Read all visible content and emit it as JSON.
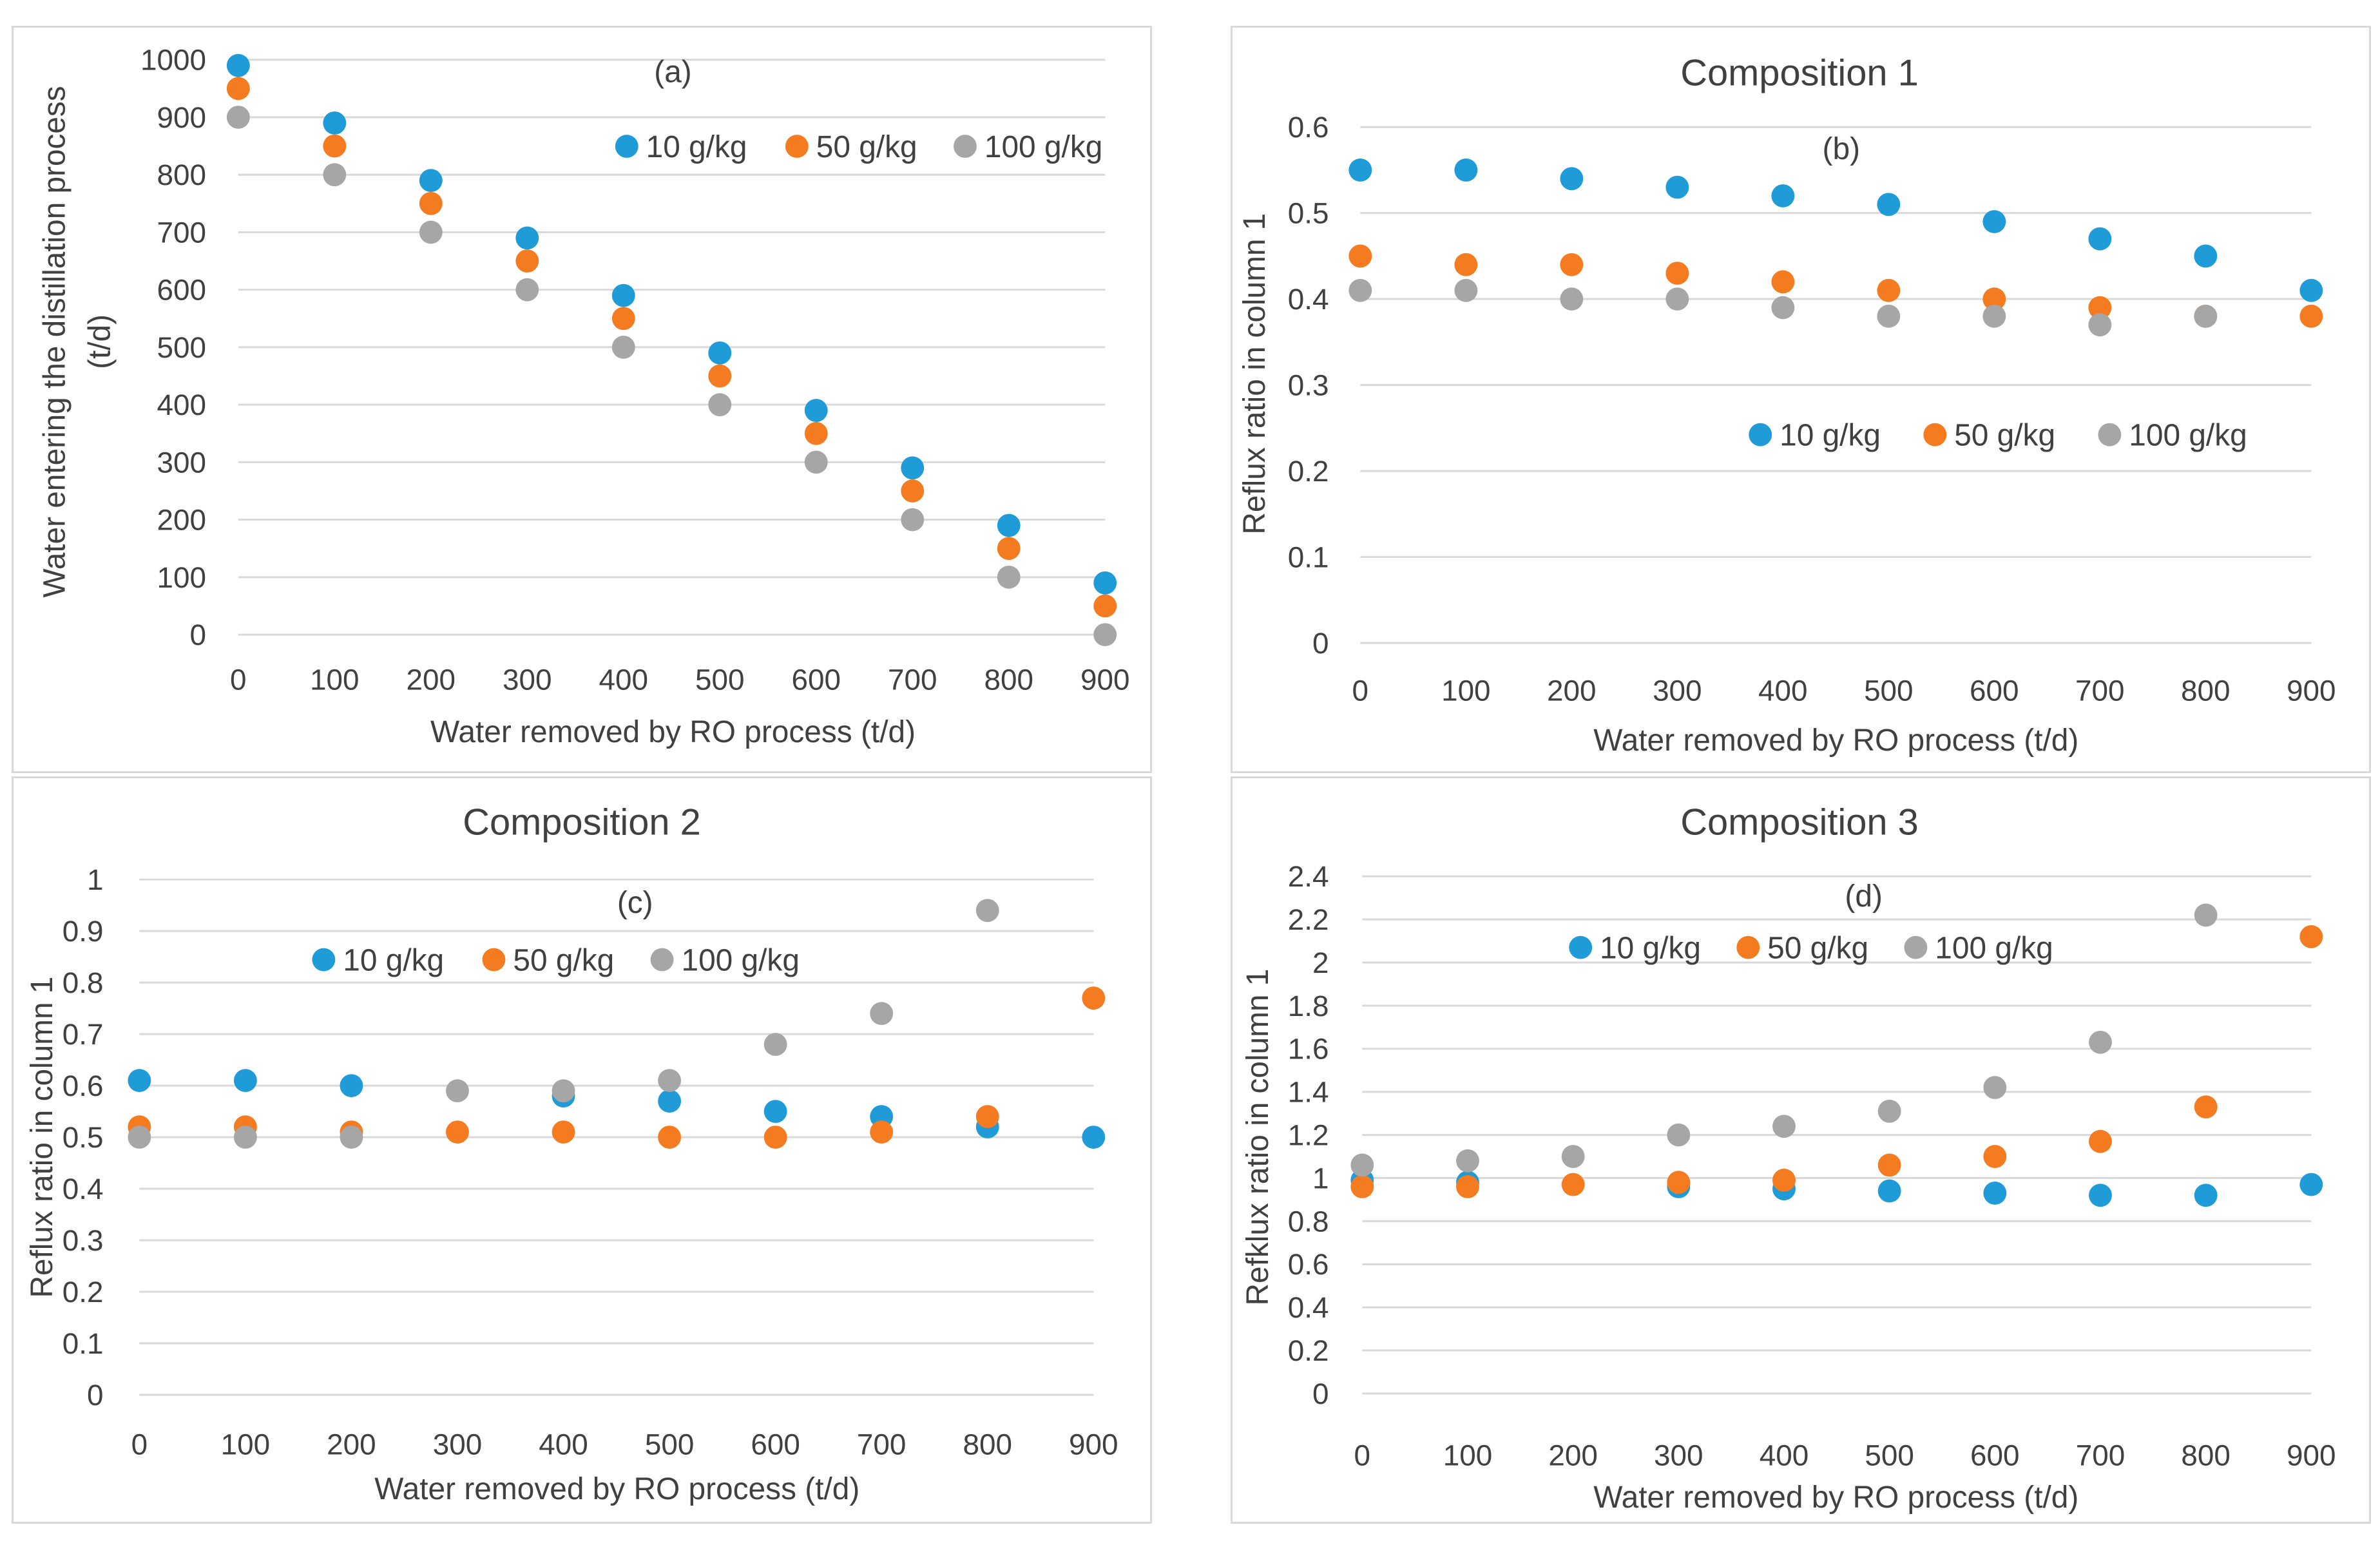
{
  "colors": {
    "series_10": "#1f9bd7",
    "series_50": "#f47b20",
    "series_100": "#a6a6a6",
    "text": "#404040",
    "grid": "#d9d9d9"
  },
  "chart_data": [
    {
      "id": "a",
      "type": "scatter",
      "title": "",
      "annotation": "(a)",
      "xlabel": "Water removed by RO process (t/d)",
      "ylabel": [
        "Water entering the distillation process",
        "(t/d)"
      ],
      "x": [
        0,
        100,
        200,
        300,
        400,
        500,
        600,
        700,
        800,
        900
      ],
      "x_ticks": [
        "0",
        "100",
        "200",
        "300",
        "400",
        "500",
        "600",
        "700",
        "800",
        "900"
      ],
      "ylim": [
        0,
        1000
      ],
      "y_ticks": [
        "0",
        "100",
        "200",
        "300",
        "400",
        "500",
        "600",
        "700",
        "800",
        "900",
        "1000"
      ],
      "y_tick_values": [
        0,
        100,
        200,
        300,
        400,
        500,
        600,
        700,
        800,
        900,
        1000
      ],
      "legend": [
        "10 g/kg",
        "50 g/kg",
        "100 g/kg"
      ],
      "series": [
        {
          "name": "10 g/kg",
          "values": [
            990,
            890,
            790,
            690,
            590,
            490,
            390,
            290,
            190,
            90
          ]
        },
        {
          "name": "50 g/kg",
          "values": [
            950,
            850,
            750,
            650,
            550,
            450,
            350,
            250,
            150,
            50
          ]
        },
        {
          "name": "100 g/kg",
          "values": [
            900,
            800,
            700,
            600,
            500,
            400,
            300,
            200,
            100,
            0
          ]
        }
      ]
    },
    {
      "id": "b",
      "type": "scatter",
      "title": "Composition 1",
      "annotation": "(b)",
      "xlabel": "Water removed by RO process (t/d)",
      "ylabel": [
        "Reflux ratio in column 1"
      ],
      "x": [
        0,
        100,
        200,
        300,
        400,
        500,
        600,
        700,
        800,
        900
      ],
      "x_ticks": [
        "0",
        "100",
        "200",
        "300",
        "400",
        "500",
        "600",
        "700",
        "800",
        "900"
      ],
      "ylim": [
        0,
        0.6
      ],
      "y_ticks": [
        "0",
        "0.1",
        "0.2",
        "0.3",
        "0.4",
        "0.5",
        "0.6"
      ],
      "y_tick_values": [
        0,
        0.1,
        0.2,
        0.3,
        0.4,
        0.5,
        0.6
      ],
      "legend": [
        "10 g/kg",
        "50 g/kg",
        "100 g/kg"
      ],
      "series": [
        {
          "name": "10 g/kg",
          "values": [
            0.55,
            0.55,
            0.54,
            0.53,
            0.52,
            0.51,
            0.49,
            0.47,
            0.45,
            0.41
          ]
        },
        {
          "name": "50 g/kg",
          "values": [
            0.45,
            0.44,
            0.44,
            0.43,
            0.42,
            0.41,
            0.4,
            0.39,
            0.38,
            0.38
          ]
        },
        {
          "name": "100 g/kg",
          "values": [
            0.41,
            0.41,
            0.4,
            0.4,
            0.39,
            0.38,
            0.38,
            0.37,
            0.38,
            null
          ]
        }
      ]
    },
    {
      "id": "c",
      "type": "scatter",
      "title": "Composition 2",
      "annotation": "(c)",
      "xlabel": "Water removed by RO process (t/d)",
      "ylabel": [
        "Reflux ratio in column 1"
      ],
      "x": [
        0,
        100,
        200,
        300,
        400,
        500,
        600,
        700,
        800,
        900
      ],
      "x_ticks": [
        "0",
        "100",
        "200",
        "300",
        "400",
        "500",
        "600",
        "700",
        "800",
        "900"
      ],
      "ylim": [
        0,
        1
      ],
      "y_ticks": [
        "0",
        "0.1",
        "0.2",
        "0.3",
        "0.4",
        "0.5",
        "0.6",
        "0.7",
        "0.8",
        "0.9",
        "1"
      ],
      "y_tick_values": [
        0,
        0.1,
        0.2,
        0.3,
        0.4,
        0.5,
        0.6,
        0.7,
        0.8,
        0.9,
        1
      ],
      "legend": [
        "10 g/kg",
        "50 g/kg",
        "100 g/kg"
      ],
      "series": [
        {
          "name": "10 g/kg",
          "values": [
            0.61,
            0.61,
            0.6,
            null,
            0.58,
            0.57,
            0.55,
            0.54,
            0.52,
            0.5
          ]
        },
        {
          "name": "50 g/kg",
          "values": [
            0.52,
            0.52,
            0.51,
            0.51,
            0.51,
            0.5,
            0.5,
            0.51,
            0.54,
            0.77
          ]
        },
        {
          "name": "100 g/kg",
          "values": [
            0.5,
            0.5,
            0.5,
            0.59,
            0.59,
            0.61,
            0.68,
            0.74,
            0.94,
            null
          ]
        }
      ]
    },
    {
      "id": "d",
      "type": "scatter",
      "title": "Composition 3",
      "annotation": "(d)",
      "xlabel": "Water removed by RO process (t/d)",
      "ylabel": [
        "Refklux ratio in column 1"
      ],
      "x": [
        0,
        100,
        200,
        300,
        400,
        500,
        600,
        700,
        800,
        900
      ],
      "x_ticks": [
        "0",
        "100",
        "200",
        "300",
        "400",
        "500",
        "600",
        "700",
        "800",
        "900"
      ],
      "ylim": [
        0,
        2.4
      ],
      "y_ticks": [
        "0",
        "0.2",
        "0.4",
        "0.6",
        "0.8",
        "1",
        "1.2",
        "1.4",
        "1.6",
        "1.8",
        "2",
        "2.2",
        "2.4"
      ],
      "y_tick_values": [
        0,
        0.2,
        0.4,
        0.6,
        0.8,
        1,
        1.2,
        1.4,
        1.6,
        1.8,
        2,
        2.2,
        2.4
      ],
      "legend": [
        "10 g/kg",
        "50 g/kg",
        "100 g/kg"
      ],
      "series": [
        {
          "name": "10 g/kg",
          "values": [
            0.99,
            0.98,
            null,
            0.96,
            0.95,
            0.94,
            0.93,
            0.92,
            0.92,
            0.97
          ]
        },
        {
          "name": "50 g/kg",
          "values": [
            0.96,
            0.96,
            0.97,
            0.98,
            0.99,
            1.06,
            1.1,
            1.17,
            1.33,
            2.12
          ]
        },
        {
          "name": "100 g/kg",
          "values": [
            1.06,
            1.08,
            1.1,
            1.2,
            1.24,
            1.31,
            1.42,
            1.63,
            2.22,
            null
          ]
        }
      ]
    }
  ]
}
